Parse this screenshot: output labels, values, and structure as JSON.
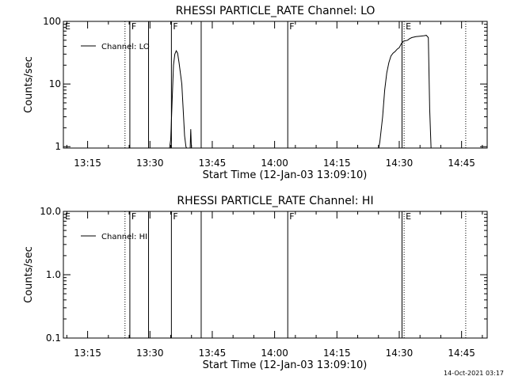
{
  "footer_timestamp": "14-Oct-2021 03:17",
  "chart_data": [
    {
      "type": "line",
      "title": "RHESSI PARTICLE_RATE Channel: LO",
      "xlabel": "Start Time (12-Jan-03 13:09:10)",
      "ylabel": "Counts/sec",
      "y_scale": "log",
      "ylim": [
        0.95,
        100
      ],
      "y_ticks": [
        {
          "value": 1,
          "label": "1"
        },
        {
          "value": 10,
          "label": "10"
        },
        {
          "value": 100,
          "label": "100"
        }
      ],
      "x_ticks": [
        "13:15",
        "13:30",
        "13:45",
        "14:00",
        "14:15",
        "14:30",
        "14:45"
      ],
      "legend": {
        "placement": "top-left",
        "entries": [
          "Channel: LO"
        ]
      },
      "grid": false,
      "series": [
        {
          "name": "Channel: LO",
          "points": [
            [
              "13:34:40",
              0.9
            ],
            [
              "13:35:00",
              1.3
            ],
            [
              "13:35:20",
              5
            ],
            [
              "13:35:40",
              20
            ],
            [
              "13:36:00",
              30
            ],
            [
              "13:36:20",
              34
            ],
            [
              "13:36:40",
              31
            ],
            [
              "13:37:00",
              22
            ],
            [
              "13:37:20",
              15
            ],
            [
              "13:37:40",
              10
            ],
            [
              "13:38:00",
              4
            ],
            [
              "13:38:20",
              1.5
            ],
            [
              "13:38:40",
              1.0
            ],
            [
              "13:39:00",
              0.9
            ],
            [
              "13:39:40",
              0.9
            ],
            [
              "13:39:50",
              1.9
            ],
            [
              "13:40:00",
              0.9
            ]
          ]
        },
        {
          "name": "Channel: LO",
          "points": [
            [
              "14:25:00",
              0.9
            ],
            [
              "14:25:20",
              1.2
            ],
            [
              "14:26:00",
              3
            ],
            [
              "14:26:30",
              8
            ],
            [
              "14:27:00",
              15
            ],
            [
              "14:27:30",
              22
            ],
            [
              "14:28:00",
              28
            ],
            [
              "14:28:30",
              31
            ],
            [
              "14:29:00",
              33
            ],
            [
              "14:29:30",
              36
            ],
            [
              "14:30:00",
              38
            ],
            [
              "14:30:30",
              44
            ],
            [
              "14:31:00",
              48
            ],
            [
              "14:32:00",
              50
            ],
            [
              "14:32:30",
              53
            ],
            [
              "14:33:00",
              55
            ],
            [
              "14:34:00",
              57
            ],
            [
              "14:35:00",
              58
            ],
            [
              "14:36:00",
              59
            ],
            [
              "14:36:30",
              60
            ],
            [
              "14:37:00",
              55
            ],
            [
              "14:37:20",
              4
            ],
            [
              "14:37:40",
              0.9
            ]
          ]
        }
      ],
      "flags": [
        {
          "letter": "E",
          "time": "13:09:10",
          "style": "none"
        },
        {
          "letter": "",
          "time": "13:24:00",
          "style": "dotted"
        },
        {
          "letter": "F",
          "time": "13:25:10",
          "style": "solid"
        },
        {
          "letter": "",
          "time": "13:29:40",
          "style": "solid"
        },
        {
          "letter": "F",
          "time": "13:35:10",
          "style": "solid"
        },
        {
          "letter": "",
          "time": "13:42:20",
          "style": "solid"
        },
        {
          "letter": "F",
          "time": "14:03:10",
          "style": "solid"
        },
        {
          "letter": "",
          "time": "14:30:40",
          "style": "solid"
        },
        {
          "letter": "E",
          "time": "14:31:10",
          "style": "dotted"
        },
        {
          "letter": "",
          "time": "14:46:00",
          "style": "dotted"
        }
      ]
    },
    {
      "type": "line",
      "title": "RHESSI PARTICLE_RATE Channel: HI",
      "xlabel": "Start Time (12-Jan-03 13:09:10)",
      "ylabel": "Counts/sec",
      "y_scale": "log",
      "ylim": [
        0.1,
        10
      ],
      "y_ticks": [
        {
          "value": 0.1,
          "label": "0.1"
        },
        {
          "value": 1,
          "label": "1.0"
        },
        {
          "value": 10,
          "label": "10.0"
        }
      ],
      "x_ticks": [
        "13:15",
        "13:30",
        "13:45",
        "14:00",
        "14:15",
        "14:30",
        "14:45"
      ],
      "legend": {
        "placement": "top-left",
        "entries": [
          "Channel: HI"
        ]
      },
      "grid": false,
      "series": [],
      "flags": [
        {
          "letter": "E",
          "time": "13:09:10",
          "style": "none"
        },
        {
          "letter": "",
          "time": "13:24:00",
          "style": "dotted"
        },
        {
          "letter": "F",
          "time": "13:25:10",
          "style": "solid"
        },
        {
          "letter": "",
          "time": "13:29:40",
          "style": "solid"
        },
        {
          "letter": "F",
          "time": "13:35:10",
          "style": "solid"
        },
        {
          "letter": "",
          "time": "13:42:20",
          "style": "solid"
        },
        {
          "letter": "F",
          "time": "14:03:10",
          "style": "solid"
        },
        {
          "letter": "",
          "time": "14:30:40",
          "style": "solid"
        },
        {
          "letter": "E",
          "time": "14:31:10",
          "style": "dotted"
        },
        {
          "letter": "",
          "time": "14:46:00",
          "style": "dotted"
        }
      ]
    }
  ]
}
